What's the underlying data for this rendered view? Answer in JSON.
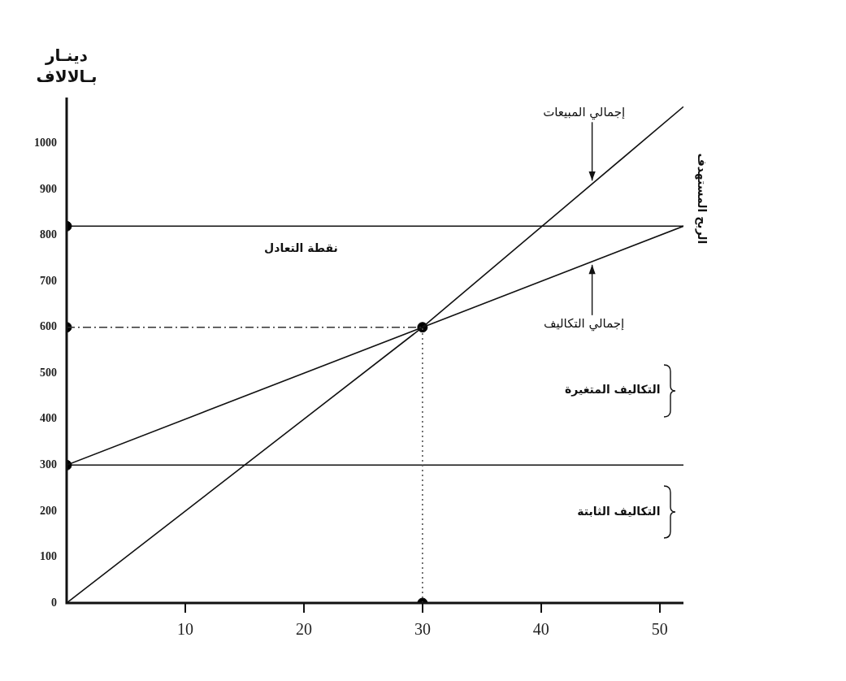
{
  "chart_data": {
    "type": "line",
    "ylabel": "دينـار بـالالاف",
    "xlim": [
      0,
      52
    ],
    "xticks": [
      10,
      20,
      30,
      40,
      50
    ],
    "ylim": [
      0,
      1100
    ],
    "yticks": [
      0,
      100,
      200,
      300,
      400,
      500,
      600,
      700,
      800,
      900,
      1000
    ],
    "grid": false,
    "legend": false,
    "marker": "none",
    "series": [
      {
        "name": "إجمالي المبيعات",
        "color": "#111111",
        "x": [
          0,
          30,
          52
        ],
        "values": [
          0,
          600,
          1080
        ]
      },
      {
        "name": "إجمالي التكاليف",
        "color": "#111111",
        "x": [
          0,
          30,
          52
        ],
        "values": [
          300,
          600,
          820
        ]
      },
      {
        "color": "#333333",
        "x": [
          0,
          30
        ],
        "values": [
          600,
          600
        ],
        "line_style": "dashed"
      },
      {
        "color": "#555555",
        "x": [
          30,
          30
        ],
        "values": [
          0,
          600
        ],
        "line_style": "dotted"
      },
      {
        "type": "scatter",
        "color": "#000000",
        "x": [
          0,
          0,
          0,
          30,
          30
        ],
        "values": [
          820,
          600,
          300,
          0,
          600
        ],
        "marker": "circle"
      }
    ],
    "ref_lines": [
      {
        "axis": "y",
        "value": 820,
        "color": "#111111"
      },
      {
        "axis": "y",
        "value": 300,
        "color": "#111111"
      }
    ],
    "annotations": [
      "نقطة التعادل",
      "الربح المستهدف",
      "التكاليف المتغيرة",
      "التكاليف الثابتة"
    ]
  }
}
